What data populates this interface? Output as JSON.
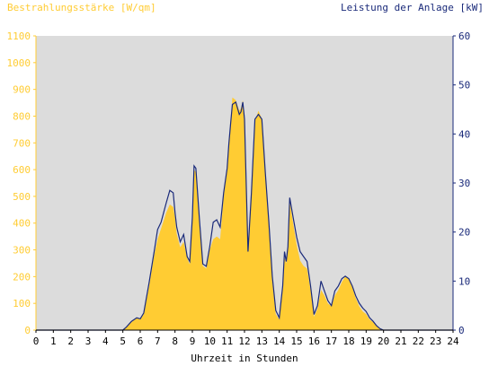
{
  "chart_data": {
    "type": "area",
    "left_axis_label": "Bestrahlungsstärke [W/qm]",
    "right_axis_label": "Leistung der Anlage [kW]",
    "xlabel": "Uhrzeit in Stunden",
    "x_ticks": [
      "0",
      "1",
      "2",
      "3",
      "4",
      "5",
      "6",
      "7",
      "8",
      "9",
      "10",
      "11",
      "12",
      "13",
      "14",
      "15",
      "16",
      "17",
      "18",
      "19",
      "20",
      "21",
      "22",
      "23",
      "24"
    ],
    "left_ticks": [
      "0",
      "100",
      "200",
      "300",
      "400",
      "500",
      "600",
      "700",
      "800",
      "900",
      "1000",
      "1100"
    ],
    "right_ticks": [
      "0",
      "10",
      "20",
      "30",
      "40",
      "50",
      "60"
    ],
    "xlim": [
      0,
      24
    ],
    "ylim_left": [
      0,
      1100
    ],
    "ylim_right": [
      0,
      60
    ],
    "colors": {
      "irradiance_fill": "#ffcc33",
      "power_line": "#1a2a7a",
      "plot_bg": "#dcdcdc",
      "left_axis_text": "#ffcc33",
      "right_axis_text": "#1a2a7a"
    },
    "series": [
      {
        "kind": "area",
        "axis": "left",
        "x": [
          0,
          5,
          5.2,
          5.5,
          5.8,
          6,
          6.2,
          6.5,
          6.8,
          7,
          7.2,
          7.5,
          7.7,
          7.9,
          8,
          8.1,
          8.3,
          8.5,
          8.7,
          8.85,
          9,
          9.1,
          9.2,
          9.4,
          9.6,
          9.8,
          10,
          10.2,
          10.4,
          10.6,
          10.8,
          11,
          11.1,
          11.2,
          11.3,
          11.5,
          11.7,
          11.8,
          11.9,
          12,
          12.2,
          12.4,
          12.6,
          12.8,
          13,
          13.2,
          13.4,
          13.6,
          13.8,
          14,
          14.2,
          14.3,
          14.4,
          14.5,
          14.6,
          14.8,
          15,
          15.2,
          15.4,
          15.6,
          15.8,
          16,
          16.2,
          16.4,
          16.6,
          16.8,
          17,
          17.2,
          17.4,
          17.6,
          17.8,
          18,
          18.2,
          18.4,
          18.6,
          18.8,
          19,
          19.2,
          19.4,
          19.6,
          19.8,
          20,
          24
        ],
        "y": [
          0,
          0,
          10,
          30,
          45,
          40,
          60,
          160,
          280,
          340,
          380,
          440,
          470,
          460,
          420,
          360,
          310,
          330,
          270,
          245,
          420,
          600,
          590,
          400,
          240,
          230,
          300,
          340,
          350,
          340,
          500,
          600,
          700,
          760,
          870,
          860,
          820,
          830,
          860,
          780,
          300,
          500,
          780,
          820,
          790,
          600,
          400,
          180,
          60,
          40,
          150,
          270,
          250,
          300,
          480,
          400,
          320,
          260,
          240,
          230,
          150,
          50,
          80,
          150,
          130,
          100,
          90,
          130,
          150,
          180,
          200,
          190,
          160,
          120,
          90,
          70,
          60,
          40,
          30,
          15,
          5,
          0,
          0
        ]
      },
      {
        "kind": "line",
        "axis": "right",
        "x": [
          0,
          5,
          5.2,
          5.5,
          5.8,
          6,
          6.2,
          6.5,
          6.8,
          7,
          7.2,
          7.5,
          7.7,
          7.9,
          8,
          8.1,
          8.3,
          8.5,
          8.7,
          8.85,
          9,
          9.1,
          9.2,
          9.4,
          9.6,
          9.8,
          10,
          10.2,
          10.4,
          10.6,
          10.8,
          11,
          11.1,
          11.2,
          11.3,
          11.5,
          11.7,
          11.8,
          11.9,
          12,
          12.2,
          12.4,
          12.6,
          12.8,
          13,
          13.2,
          13.4,
          13.6,
          13.8,
          14,
          14.2,
          14.3,
          14.4,
          14.5,
          14.6,
          14.8,
          15,
          15.2,
          15.4,
          15.6,
          15.8,
          16,
          16.2,
          16.4,
          16.6,
          16.8,
          17,
          17.2,
          17.4,
          17.6,
          17.8,
          18,
          18.2,
          18.4,
          18.6,
          18.8,
          19,
          19.2,
          19.4,
          19.6,
          19.8,
          20,
          24
        ],
        "y": [
          0,
          0,
          0.6,
          1.8,
          2.5,
          2.3,
          3.5,
          9.5,
          16,
          20.5,
          22,
          26,
          28.5,
          28,
          24,
          21,
          18,
          19.5,
          15,
          14,
          23,
          33.5,
          33,
          23,
          13.5,
          13,
          17,
          22,
          22.5,
          21,
          28,
          33,
          38,
          42,
          46,
          46.5,
          44,
          44.5,
          46.5,
          43,
          16,
          28,
          43,
          44,
          43,
          32,
          22,
          11,
          4,
          2.5,
          9,
          16,
          14,
          17,
          27,
          23,
          19,
          16,
          15,
          14,
          9,
          3.2,
          5,
          10,
          8,
          6,
          5,
          8,
          9,
          10.5,
          11,
          10.5,
          9,
          7,
          5.5,
          4.5,
          3.8,
          2.5,
          1.8,
          0.9,
          0.3,
          0,
          0
        ]
      }
    ]
  }
}
